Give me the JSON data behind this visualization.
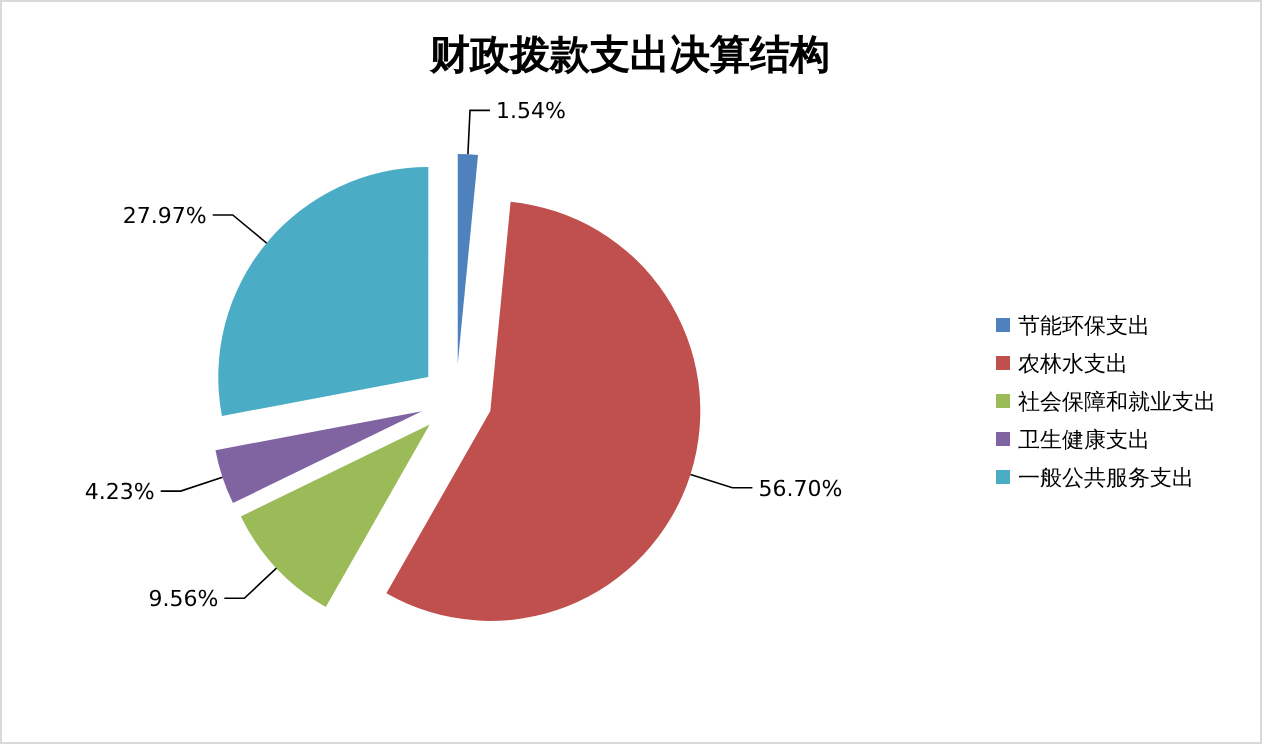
{
  "chart_data": {
    "type": "pie",
    "title": "财政拨款支出决算结构",
    "categories": [
      "节能环保支出",
      "农林水支出",
      "社会保障和就业支出",
      "卫生健康支出",
      "一般公共服务支出"
    ],
    "values": [
      1.54,
      56.7,
      9.56,
      4.23,
      27.97
    ],
    "colors": [
      "#4f81bd",
      "#c0504d",
      "#9bbb59",
      "#8064a2",
      "#4bacc6"
    ],
    "value_labels": [
      "1.54%",
      "56.70%",
      "9.56%",
      "4.23%",
      "27.97%"
    ],
    "legend": "right"
  }
}
